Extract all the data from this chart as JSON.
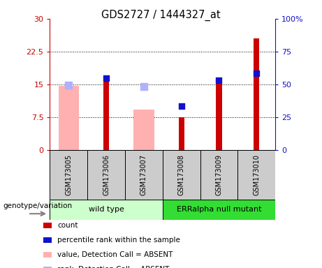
{
  "title": "GDS2727 / 1444327_at",
  "samples": [
    "GSM173005",
    "GSM173006",
    "GSM173007",
    "GSM173008",
    "GSM173009",
    "GSM173010"
  ],
  "count_values": [
    null,
    16.2,
    null,
    7.5,
    15.8,
    25.5
  ],
  "percentile_values": [
    null,
    16.5,
    null,
    10.0,
    16.0,
    17.5
  ],
  "absent_value_bars": [
    14.7,
    null,
    9.3,
    null,
    null,
    null
  ],
  "absent_rank_bars": [
    14.9,
    null,
    14.5,
    null,
    null,
    null
  ],
  "ylim_left": [
    0,
    30
  ],
  "ylim_right": [
    0,
    100
  ],
  "yticks_left": [
    0,
    7.5,
    15,
    22.5,
    30
  ],
  "ytick_labels_left": [
    "0",
    "7.5",
    "15",
    "22.5",
    "30"
  ],
  "yticks_right": [
    0,
    25,
    50,
    75,
    100
  ],
  "ytick_labels_right": [
    "0",
    "25",
    "50",
    "75",
    "100%"
  ],
  "color_count": "#cc0000",
  "color_percentile": "#1111cc",
  "color_absent_value": "#ffb0b0",
  "color_absent_rank": "#b0b0ff",
  "color_group1_light": "#ccffcc",
  "color_group2_bright": "#33dd33",
  "dotted_lines": [
    7.5,
    15.0,
    22.5
  ],
  "absent_bar_width": 0.55,
  "count_bar_width": 0.15,
  "percentile_marker_size": 35,
  "absent_rank_marker_size": 45
}
